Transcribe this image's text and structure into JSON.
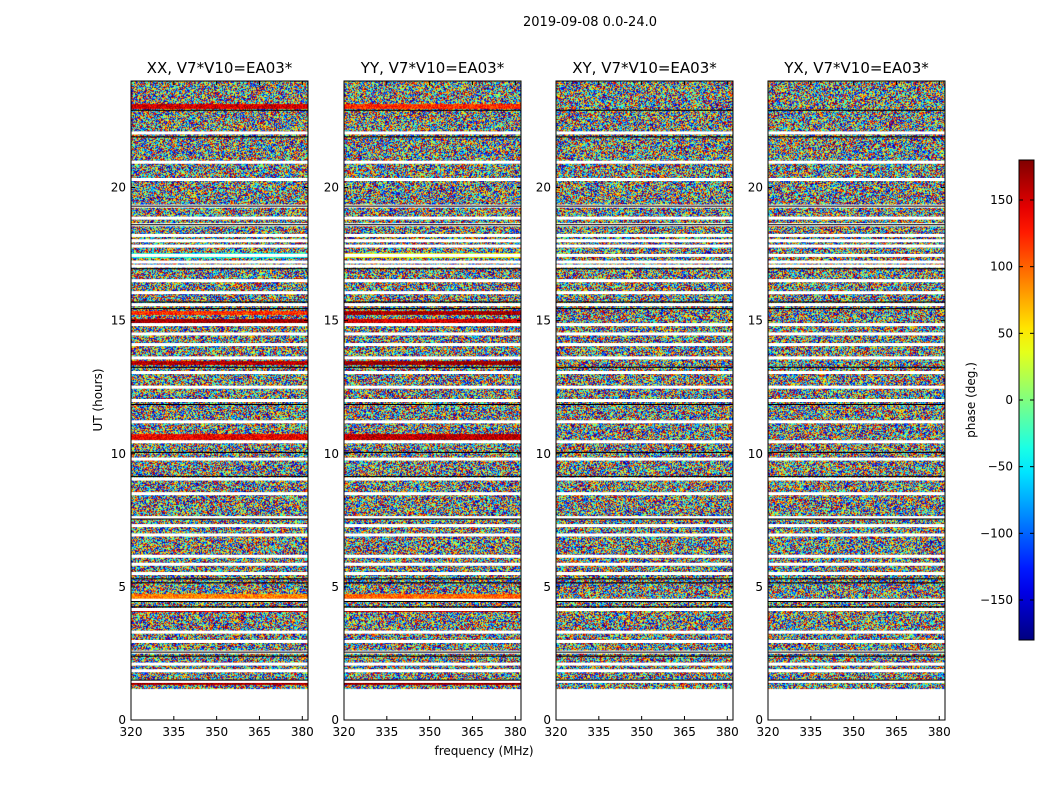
{
  "figure": {
    "suptitle": "2019-09-08 0.0-24.0",
    "xlabel": "frequency (MHz)",
    "ylabel": "UT (hours)"
  },
  "colorbar": {
    "label": "phase (deg.)",
    "range": [
      -180,
      180
    ],
    "ticks": [
      "150",
      "100",
      "50",
      "0",
      "−50",
      "−100",
      "−150"
    ],
    "tick_values": [
      150,
      100,
      50,
      0,
      -50,
      -100,
      -150
    ],
    "colormap": "jet"
  },
  "chart_data": {
    "type": "heatmap",
    "x": {
      "label": "frequency (MHz)",
      "range": [
        320,
        382
      ],
      "ticks": [
        320,
        335,
        350,
        365,
        380
      ],
      "tick_labels": [
        "320",
        "335",
        "350",
        "365",
        "380"
      ]
    },
    "y": {
      "label": "UT (hours)",
      "range": [
        0,
        24
      ],
      "ticks": [
        0,
        5,
        10,
        15,
        20
      ],
      "tick_labels": [
        "0",
        "5",
        "10",
        "15",
        "20"
      ]
    },
    "z": {
      "label": "phase (deg.)",
      "range": [
        -180,
        180
      ]
    },
    "data_start_ut": 1.2,
    "flagged_ut_hours": [
      1.45,
      1.85,
      2.1,
      2.55,
      2.95,
      3.3,
      4.15,
      4.5,
      5.5,
      5.85,
      6.15,
      6.95,
      7.3,
      7.6,
      8.5,
      9.05,
      9.8,
      10.45,
      11.2,
      12.0,
      12.5,
      13.05,
      13.6,
      14.1,
      14.5,
      14.85,
      15.6,
      16.05,
      16.5,
      17.05,
      17.2,
      17.45,
      17.8,
      18.0,
      18.2,
      18.6,
      18.85,
      19.3,
      20.3,
      20.95,
      22.05
    ],
    "black_lines_ut_hours": [
      1.5,
      2.4,
      2.55,
      4.25,
      4.45,
      5.15,
      5.3,
      7.55,
      9.15,
      10.05,
      11.85,
      13.25,
      15.45,
      15.7,
      16.95,
      18.6,
      19.3,
      21.9,
      22.9
    ],
    "panels": [
      {
        "title": "XX, V7*V10=EA03*",
        "coherent_bands": [
          {
            "ut": [
              22.95,
              23.15
            ],
            "phase": 150
          },
          {
            "ut": [
              17.35,
              17.55
            ],
            "phase": -40
          },
          {
            "ut": [
              15.2,
              15.35
            ],
            "phase": 120
          },
          {
            "ut": [
              14.9,
              15.05
            ],
            "phase": 170
          },
          {
            "ut": [
              13.35,
              13.5
            ],
            "phase": 160
          },
          {
            "ut": [
              10.5,
              10.75
            ],
            "phase": 140
          },
          {
            "ut": [
              4.55,
              4.75
            ],
            "phase": 90
          },
          {
            "ut": [
              4.05,
              4.15
            ],
            "phase": 150
          },
          {
            "ut": [
              1.3,
              1.45
            ],
            "phase": 170
          }
        ]
      },
      {
        "title": "YY, V7*V10=EA03*",
        "coherent_bands": [
          {
            "ut": [
              22.95,
              23.15
            ],
            "phase": 120
          },
          {
            "ut": [
              17.35,
              17.55
            ],
            "phase": 40
          },
          {
            "ut": [
              15.2,
              15.35
            ],
            "phase": 170
          },
          {
            "ut": [
              14.9,
              15.05
            ],
            "phase": 150
          },
          {
            "ut": [
              13.35,
              13.5
            ],
            "phase": 175
          },
          {
            "ut": [
              10.5,
              10.75
            ],
            "phase": 160
          },
          {
            "ut": [
              4.55,
              4.75
            ],
            "phase": 100
          },
          {
            "ut": [
              4.05,
              4.15
            ],
            "phase": 160
          },
          {
            "ut": [
              1.3,
              1.45
            ],
            "phase": 175
          }
        ]
      },
      {
        "title": "XY, V7*V10=EA03*",
        "coherent_bands": []
      },
      {
        "title": "YX, V7*V10=EA03*",
        "coherent_bands": []
      }
    ]
  }
}
